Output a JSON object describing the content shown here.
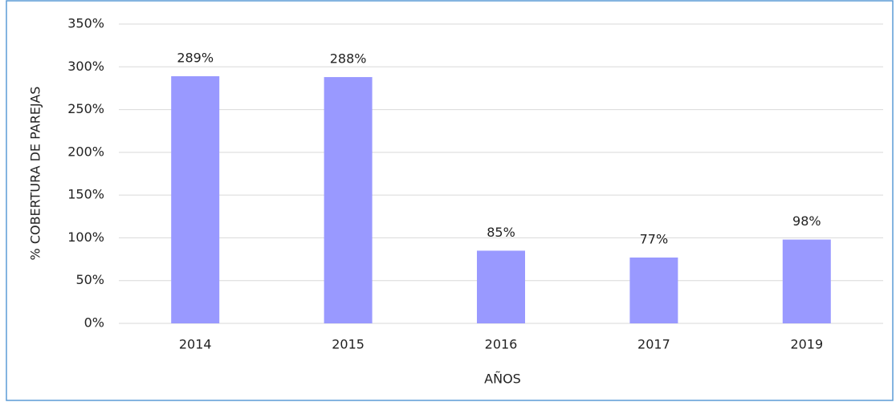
{
  "chart_data": {
    "type": "bar",
    "categories": [
      "2014",
      "2015",
      "2016",
      "2017",
      "2019"
    ],
    "values": [
      289,
      288,
      85,
      77,
      98
    ],
    "value_labels": [
      "289%",
      "288%",
      "85%",
      "77%",
      "98%"
    ],
    "color": "#9999ff",
    "ylim": [
      0,
      350
    ],
    "yticks": [
      {
        "value": 0,
        "label": "0%"
      },
      {
        "value": 50,
        "label": "50%"
      },
      {
        "value": 100,
        "label": "100%"
      },
      {
        "value": 150,
        "label": "150%"
      },
      {
        "value": 200,
        "label": "200%"
      },
      {
        "value": 250,
        "label": "250%"
      },
      {
        "value": 300,
        "label": "300%"
      },
      {
        "value": 350,
        "label": "350%"
      }
    ],
    "grid": true,
    "x_label": "AÑOS",
    "y_label": "% COBERTURA DE PAREJAS"
  }
}
